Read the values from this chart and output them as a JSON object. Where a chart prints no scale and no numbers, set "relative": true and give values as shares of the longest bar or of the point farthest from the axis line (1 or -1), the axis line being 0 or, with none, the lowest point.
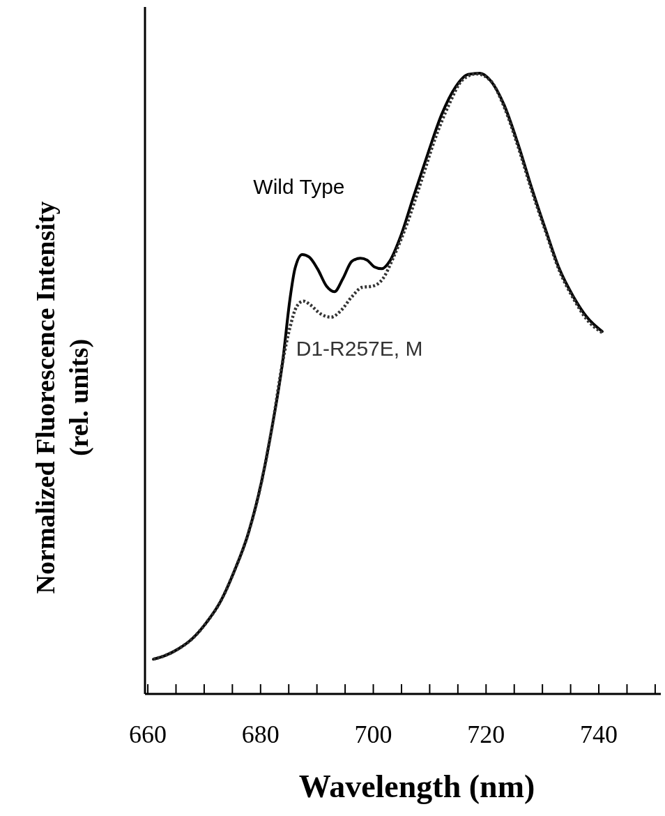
{
  "chart_data": {
    "type": "line",
    "relative": true,
    "xlabel": "Wavelength (nm)",
    "ylabel": "Normalized Fluorescence Intensity\n(rel. units)",
    "xlim": [
      659.5,
      751
    ],
    "xticks": [
      660,
      {
        "value": 665,
        "label": null
      },
      680,
      {
        "value": 670,
        "label": null
      },
      {
        "value": 675,
        "label": null
      },
      {
        "value": 685,
        "label": null
      },
      {
        "value": 690,
        "label": null
      },
      {
        "value": 695,
        "label": null
      },
      700,
      {
        "value": 705,
        "label": null
      },
      {
        "value": 710,
        "label": null
      },
      {
        "value": 715,
        "label": null
      },
      720,
      {
        "value": 725,
        "label": null
      },
      {
        "value": 730,
        "label": null
      },
      {
        "value": 735,
        "label": null
      },
      740,
      {
        "value": 745,
        "label": null
      },
      {
        "value": 750,
        "label": null
      }
    ],
    "grid": false,
    "series": [
      {
        "name": "Wild Type",
        "color": "#000000",
        "line_style": "solid",
        "x": [
          661,
          663.1,
          665.5,
          668,
          670.4,
          672.9,
          675.3,
          677.8,
          680.2,
          682.1,
          683.9,
          685.2,
          686.1,
          687.4,
          688.6,
          690.1,
          691.7,
          693.1,
          694.6,
          696.2,
          697.7,
          698.9,
          700.2,
          701.5,
          702.9,
          704.8,
          707.2,
          709.7,
          712.1,
          714.6,
          716.8,
          718.9,
          720.7,
          723.2,
          725.6,
          728.1,
          730.6,
          733,
          735.5,
          737.9,
          740.6
        ],
        "values": [
          0.056,
          0.062,
          0.073,
          0.09,
          0.115,
          0.149,
          0.197,
          0.258,
          0.343,
          0.433,
          0.534,
          0.635,
          0.685,
          0.708,
          0.704,
          0.685,
          0.657,
          0.648,
          0.669,
          0.697,
          0.702,
          0.699,
          0.688,
          0.685,
          0.697,
          0.736,
          0.803,
          0.871,
          0.933,
          0.978,
          0.998,
          1.0,
          0.989,
          0.949,
          0.888,
          0.815,
          0.747,
          0.685,
          0.64,
          0.607,
          0.584
        ]
      },
      {
        "name": "D1-R257E, M",
        "color": "#333333",
        "line_style": "dotted",
        "x": [
          661,
          663.1,
          665.5,
          668,
          670.4,
          672.9,
          675.3,
          677.8,
          680.2,
          682.1,
          683.9,
          685.2,
          686.4,
          687.6,
          688.8,
          690.7,
          692.5,
          694.3,
          696.2,
          698,
          699.9,
          701.7,
          703.5,
          706,
          708.5,
          710.9,
          713.4,
          715.8,
          718.3,
          720.7,
          723.2,
          725.6,
          728.1,
          730.6,
          733,
          735.5,
          737.9,
          740.6
        ],
        "values": [
          0.056,
          0.062,
          0.073,
          0.09,
          0.115,
          0.149,
          0.197,
          0.258,
          0.343,
          0.433,
          0.534,
          0.59,
          0.624,
          0.633,
          0.627,
          0.612,
          0.607,
          0.618,
          0.64,
          0.655,
          0.657,
          0.669,
          0.702,
          0.758,
          0.826,
          0.893,
          0.949,
          0.989,
          0.999,
          0.989,
          0.946,
          0.884,
          0.811,
          0.744,
          0.682,
          0.637,
          0.603,
          0.582
        ]
      }
    ]
  }
}
